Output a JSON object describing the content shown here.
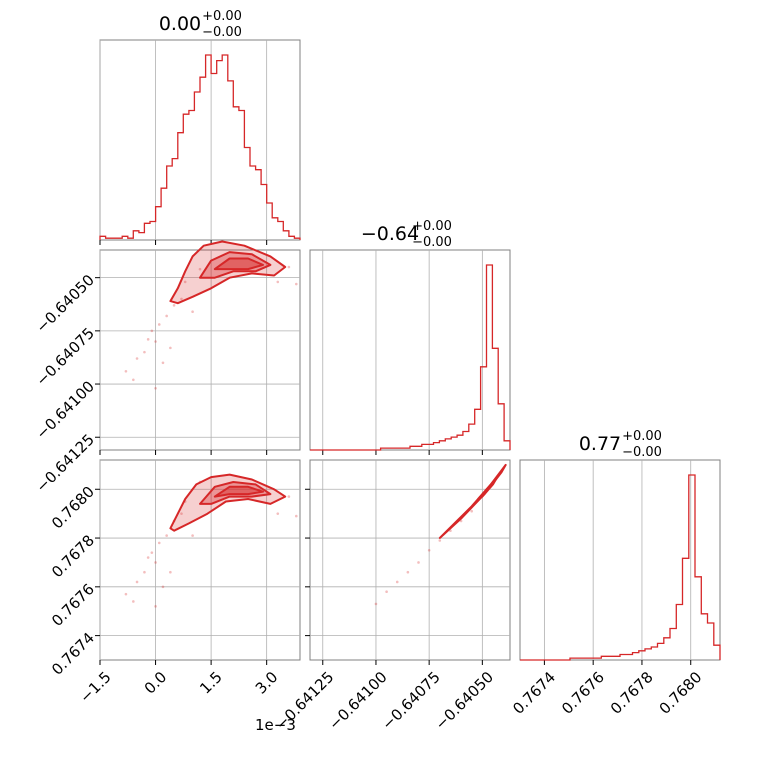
{
  "chart_data": {
    "type": "corner",
    "color": "#d62728",
    "parameters": [
      {
        "key": "p0",
        "range": [
          -0.0015,
          0.0039
        ],
        "ticks": [
          -0.0015,
          0.0,
          0.0015,
          0.003
        ],
        "tick_labels": [
          "−1.5",
          "0.0",
          "1.5",
          "3.0"
        ],
        "offset_text": "1e−3"
      },
      {
        "key": "p1",
        "range": [
          -0.64131,
          -0.64037
        ],
        "ticks": [
          -0.64125,
          -0.641,
          -0.64075,
          -0.6405
        ],
        "tick_labels": [
          "−0.64125",
          "−0.64100",
          "−0.64075",
          "−0.64050"
        ]
      },
      {
        "key": "p2",
        "range": [
          0.7673,
          0.76812
        ],
        "ticks": [
          0.7674,
          0.7676,
          0.7678,
          0.768
        ],
        "tick_labels": [
          "0.7674",
          "0.7676",
          "0.7678",
          "0.7680"
        ]
      }
    ],
    "titles": [
      {
        "value": "0.00",
        "plus": "+0.00",
        "minus": "−0.00"
      },
      {
        "value": "−0.64",
        "plus": "+0.00",
        "minus": "−0.00"
      },
      {
        "value": "0.77",
        "plus": "+0.00",
        "minus": "−0.00"
      }
    ],
    "histograms": [
      {
        "param": 0,
        "density": [
          0.02,
          0.01,
          0.01,
          0.01,
          0.02,
          0.01,
          0.05,
          0.04,
          0.09,
          0.1,
          0.18,
          0.28,
          0.4,
          0.44,
          0.58,
          0.68,
          0.7,
          0.8,
          0.88,
          1.0,
          0.9,
          0.97,
          1.0,
          0.86,
          0.72,
          0.7,
          0.5,
          0.4,
          0.38,
          0.3,
          0.2,
          0.12,
          0.1,
          0.05,
          0.02,
          0.01
        ]
      },
      {
        "param": 1,
        "density": [
          0,
          0,
          0,
          0,
          0,
          0,
          0,
          0,
          0,
          0,
          0,
          0,
          0.01,
          0.01,
          0.01,
          0.01,
          0.01,
          0.02,
          0.02,
          0.03,
          0.03,
          0.04,
          0.05,
          0.06,
          0.07,
          0.08,
          0.1,
          0.14,
          0.22,
          0.45,
          1.0,
          0.55,
          0.25,
          0.05
        ]
      },
      {
        "param": 2,
        "density": [
          0,
          0,
          0,
          0,
          0,
          0,
          0,
          0,
          0.01,
          0.01,
          0.01,
          0.01,
          0.01,
          0.02,
          0.02,
          0.02,
          0.03,
          0.03,
          0.04,
          0.05,
          0.06,
          0.07,
          0.09,
          0.12,
          0.17,
          0.3,
          0.55,
          1.0,
          0.45,
          0.25,
          0.2,
          0.08
        ]
      }
    ],
    "contours_p0_p1": [
      {
        "level": "outer",
        "points": [
          [
            0.0004,
            -0.64061
          ],
          [
            0.0006,
            -0.64055
          ],
          [
            0.0008,
            -0.64047
          ],
          [
            0.001,
            -0.6404
          ],
          [
            0.0013,
            -0.64035
          ],
          [
            0.0018,
            -0.64033
          ],
          [
            0.0024,
            -0.64035
          ],
          [
            0.0031,
            -0.6404
          ],
          [
            0.0035,
            -0.64045
          ],
          [
            0.0032,
            -0.64049
          ],
          [
            0.0026,
            -0.64048
          ],
          [
            0.002,
            -0.6405
          ],
          [
            0.0015,
            -0.64055
          ],
          [
            0.001,
            -0.64059
          ],
          [
            0.0006,
            -0.64062
          ]
        ]
      },
      {
        "level": "mid",
        "points": [
          [
            0.0012,
            -0.6405
          ],
          [
            0.0015,
            -0.64042
          ],
          [
            0.002,
            -0.64038
          ],
          [
            0.0026,
            -0.64039
          ],
          [
            0.0031,
            -0.64044
          ],
          [
            0.0027,
            -0.64047
          ],
          [
            0.0021,
            -0.64047
          ],
          [
            0.0016,
            -0.6405
          ]
        ]
      },
      {
        "level": "inner",
        "points": [
          [
            0.0016,
            -0.64046
          ],
          [
            0.002,
            -0.64041
          ],
          [
            0.0025,
            -0.64041
          ],
          [
            0.0029,
            -0.64044
          ],
          [
            0.0025,
            -0.64046
          ],
          [
            0.002,
            -0.64046
          ]
        ]
      }
    ],
    "contours_p0_p2": [
      {
        "level": "outer",
        "points": [
          [
            0.0004,
            0.76784
          ],
          [
            0.0006,
            0.7679
          ],
          [
            0.0008,
            0.76796
          ],
          [
            0.0011,
            0.76802
          ],
          [
            0.0015,
            0.76805
          ],
          [
            0.002,
            0.76806
          ],
          [
            0.0026,
            0.76804
          ],
          [
            0.0032,
            0.768
          ],
          [
            0.0035,
            0.76797
          ],
          [
            0.0031,
            0.76794
          ],
          [
            0.0025,
            0.76796
          ],
          [
            0.0019,
            0.76795
          ],
          [
            0.0014,
            0.7679
          ],
          [
            0.0009,
            0.76786
          ],
          [
            0.0005,
            0.76783
          ]
        ]
      },
      {
        "level": "mid",
        "points": [
          [
            0.0012,
            0.76794
          ],
          [
            0.0016,
            0.76801
          ],
          [
            0.0021,
            0.76803
          ],
          [
            0.0027,
            0.76802
          ],
          [
            0.0031,
            0.76798
          ],
          [
            0.0026,
            0.76797
          ],
          [
            0.002,
            0.76797
          ],
          [
            0.0015,
            0.76794
          ]
        ]
      },
      {
        "level": "inner",
        "points": [
          [
            0.0016,
            0.76797
          ],
          [
            0.002,
            0.76801
          ],
          [
            0.0025,
            0.76801
          ],
          [
            0.0029,
            0.76799
          ],
          [
            0.0025,
            0.76798
          ],
          [
            0.002,
            0.76798
          ]
        ]
      }
    ],
    "contours_p1_p2": [
      {
        "level": "outer",
        "points": [
          [
            -0.6407,
            0.7678
          ],
          [
            -0.64055,
            0.76793
          ],
          [
            -0.64046,
            0.76802
          ],
          [
            -0.64039,
            0.7681
          ],
          [
            -0.64041,
            0.76807
          ],
          [
            -0.64049,
            0.76798
          ],
          [
            -0.6406,
            0.76788
          ]
        ]
      },
      {
        "level": "inner",
        "points": [
          [
            -0.64052,
            0.76796
          ],
          [
            -0.64046,
            0.76802
          ],
          [
            -0.64043,
            0.76805
          ],
          [
            -0.64045,
            0.76802
          ],
          [
            -0.6405,
            0.76797
          ]
        ]
      }
    ],
    "scatter_p0_p1": [
      [
        -0.0008,
        -0.64094
      ],
      [
        -0.0005,
        -0.64088
      ],
      [
        -0.0003,
        -0.64085
      ],
      [
        0.0,
        -0.6408
      ],
      [
        0.0001,
        -0.64072
      ],
      [
        0.0003,
        -0.64068
      ],
      [
        -0.0002,
        -0.64079
      ],
      [
        0.0002,
        -0.6409
      ],
      [
        0.0005,
        -0.64063
      ],
      [
        0.0007,
        -0.6406
      ],
      [
        -0.0006,
        -0.64098
      ],
      [
        0.0008,
        -0.64052
      ],
      [
        0.0012,
        -0.64046
      ],
      [
        0.0036,
        -0.64045
      ],
      [
        0.0038,
        -0.64053
      ],
      [
        0.0033,
        -0.64052
      ],
      [
        -0.0001,
        -0.64075
      ],
      [
        0.0004,
        -0.64083
      ],
      [
        0.0,
        -0.64102
      ],
      [
        0.001,
        -0.64066
      ]
    ],
    "scatter_p0_p2": [
      [
        -0.0008,
        0.76757
      ],
      [
        -0.0005,
        0.76762
      ],
      [
        -0.0003,
        0.76766
      ],
      [
        0.0,
        0.7677
      ],
      [
        0.0001,
        0.76778
      ],
      [
        0.0003,
        0.76781
      ],
      [
        -0.0002,
        0.76772
      ],
      [
        0.0002,
        0.7676
      ],
      [
        0.0005,
        0.76787
      ],
      [
        0.0007,
        0.7679
      ],
      [
        -0.0006,
        0.76754
      ],
      [
        0.0008,
        0.76795
      ],
      [
        0.0012,
        0.76803
      ],
      [
        0.0036,
        0.76797
      ],
      [
        0.0038,
        0.76789
      ],
      [
        0.0033,
        0.7679
      ],
      [
        -0.0001,
        0.76774
      ],
      [
        0.0004,
        0.76766
      ],
      [
        0.0,
        0.76752
      ],
      [
        0.001,
        0.76781
      ]
    ],
    "scatter_p1_p2": [
      [
        -0.641,
        0.76753
      ],
      [
        -0.64095,
        0.76758
      ],
      [
        -0.6409,
        0.76762
      ],
      [
        -0.64085,
        0.76766
      ],
      [
        -0.6408,
        0.7677
      ],
      [
        -0.64075,
        0.76775
      ],
      [
        -0.6407,
        0.76779
      ],
      [
        -0.64065,
        0.76783
      ],
      [
        -0.6406,
        0.76787
      ],
      [
        -0.64055,
        0.76791
      ]
    ]
  }
}
